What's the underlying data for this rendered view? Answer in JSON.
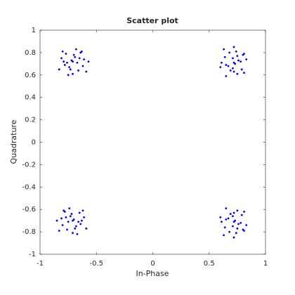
{
  "chart_data": {
    "type": "scatter",
    "title": "Scatter plot",
    "x_label": "In-Phase",
    "y_label": "Quadrature",
    "color": "#0000ff",
    "grid": false,
    "xlim": [
      -1,
      1
    ],
    "ylim": [
      -1,
      1
    ],
    "xticks": [
      -1,
      -0.5,
      0,
      0.5,
      1
    ],
    "yticks": [
      -1,
      -0.8,
      -0.6,
      -0.4,
      -0.2,
      0,
      0.2,
      0.4,
      0.6,
      0.8,
      1
    ],
    "x": [
      -0.69,
      -0.79,
      -0.66,
      -0.74,
      -0.61,
      -0.83,
      -0.64,
      -0.71,
      -0.77,
      -0.67,
      -0.72,
      -0.62,
      -0.81,
      -0.68,
      -0.75,
      -0.59,
      -0.78,
      -0.7,
      -0.65,
      -0.73,
      -0.63,
      -0.8,
      -0.57,
      -0.76,
      -0.71,
      0.76,
      0.72,
      0.64,
      0.67,
      0.74,
      0.65,
      0.8,
      0.61,
      0.79,
      0.71,
      0.73,
      0.68,
      0.75,
      0.83,
      0.6,
      0.63,
      0.69,
      0.78,
      0.75,
      0.65,
      0.81,
      0.81,
      0.72,
      0.71,
      0.72,
      -0.73,
      -0.63,
      -0.76,
      -0.68,
      -0.81,
      -0.59,
      -0.78,
      -0.71,
      -0.65,
      -0.75,
      -0.7,
      -0.8,
      -0.61,
      -0.74,
      -0.67,
      -0.83,
      -0.64,
      -0.72,
      -0.77,
      -0.69,
      -0.79,
      -0.62,
      -0.85,
      -0.66,
      -0.71,
      0.76,
      0.72,
      0.64,
      0.67,
      0.74,
      0.65,
      0.8,
      0.61,
      0.79,
      0.71,
      0.73,
      0.68,
      0.75,
      0.83,
      0.6,
      0.63,
      0.69,
      0.78,
      0.75,
      0.65,
      0.81,
      0.81,
      0.72,
      0.71,
      0.72
    ],
    "values": [
      0.76,
      0.72,
      0.64,
      0.67,
      0.74,
      0.65,
      0.8,
      0.61,
      0.79,
      0.71,
      0.73,
      0.68,
      0.75,
      0.83,
      0.6,
      0.63,
      0.69,
      0.78,
      0.75,
      0.65,
      0.81,
      0.81,
      0.72,
      0.71,
      0.72,
      0.73,
      0.63,
      0.76,
      0.68,
      0.81,
      0.59,
      0.78,
      0.71,
      0.65,
      0.75,
      0.7,
      0.8,
      0.61,
      0.74,
      0.67,
      0.83,
      0.64,
      0.72,
      0.77,
      0.69,
      0.79,
      0.62,
      0.85,
      0.66,
      0.71,
      -0.66,
      -0.7,
      -0.78,
      -0.75,
      -0.68,
      -0.77,
      -0.62,
      -0.81,
      -0.63,
      -0.71,
      -0.69,
      -0.74,
      -0.67,
      -0.59,
      -0.82,
      -0.79,
      -0.73,
      -0.64,
      -0.67,
      -0.77,
      -0.61,
      -0.61,
      -0.7,
      -0.71,
      -0.7,
      -0.73,
      -0.63,
      -0.76,
      -0.68,
      -0.81,
      -0.59,
      -0.78,
      -0.71,
      -0.65,
      -0.75,
      -0.7,
      -0.8,
      -0.61,
      -0.74,
      -0.67,
      -0.83,
      -0.64,
      -0.72,
      -0.77,
      -0.69,
      -0.79,
      -0.62,
      -0.85,
      -0.66,
      -0.71
    ]
  }
}
